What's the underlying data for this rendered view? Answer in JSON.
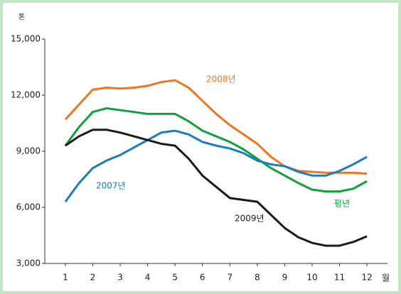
{
  "chart_data": {
    "type": "line",
    "y_unit": "톤",
    "x_unit": "월",
    "x": [
      1,
      1.5,
      2,
      2.5,
      3,
      3.5,
      4,
      4.5,
      5,
      5.5,
      6,
      6.5,
      7,
      7.5,
      8,
      8.5,
      9,
      9.5,
      10,
      10.5,
      11,
      11.5,
      12
    ],
    "series": [
      {
        "name": "2008년",
        "color": "#ee7623",
        "values": [
          10700,
          11500,
          12300,
          12400,
          12350,
          12400,
          12500,
          12700,
          12800,
          12400,
          11700,
          11000,
          10400,
          9900,
          9400,
          8700,
          8200,
          7950,
          7900,
          7850,
          7850,
          7850,
          7800
        ]
      },
      {
        "name": "평년",
        "color": "#10a040",
        "values": [
          9300,
          10300,
          11100,
          11300,
          11200,
          11100,
          11000,
          11000,
          11000,
          10600,
          10100,
          9800,
          9500,
          9100,
          8600,
          8100,
          7700,
          7300,
          6950,
          6850,
          6850,
          7000,
          7400
        ]
      },
      {
        "name": "2007년",
        "color": "#1a7cc1",
        "values": [
          6300,
          7300,
          8100,
          8500,
          8800,
          9200,
          9600,
          10000,
          10100,
          9900,
          9500,
          9300,
          9150,
          8900,
          8500,
          8300,
          8200,
          7900,
          7700,
          7700,
          7950,
          8300,
          8700
        ]
      },
      {
        "name": "2009년",
        "color": "#1a1a1a",
        "values": [
          9300,
          9800,
          10150,
          10150,
          10000,
          9800,
          9600,
          9400,
          9300,
          8600,
          7700,
          7100,
          6500,
          6400,
          6300,
          5600,
          4900,
          4400,
          4100,
          3950,
          3950,
          4150,
          4450
        ]
      }
    ],
    "xlim": [
      0.25,
      12.75
    ],
    "xticks": [
      1,
      2,
      3,
      4,
      5,
      6,
      7,
      8,
      9,
      10,
      11,
      12
    ],
    "ylim": [
      3000,
      15000
    ],
    "yticks": [
      {
        "value": 3000,
        "label": "3,000"
      },
      {
        "value": 6000,
        "label": "6,000"
      },
      {
        "value": 9000,
        "label": "9,000"
      },
      {
        "value": 12000,
        "label": "12,000"
      },
      {
        "value": 15000,
        "label": "15,000"
      }
    ]
  }
}
